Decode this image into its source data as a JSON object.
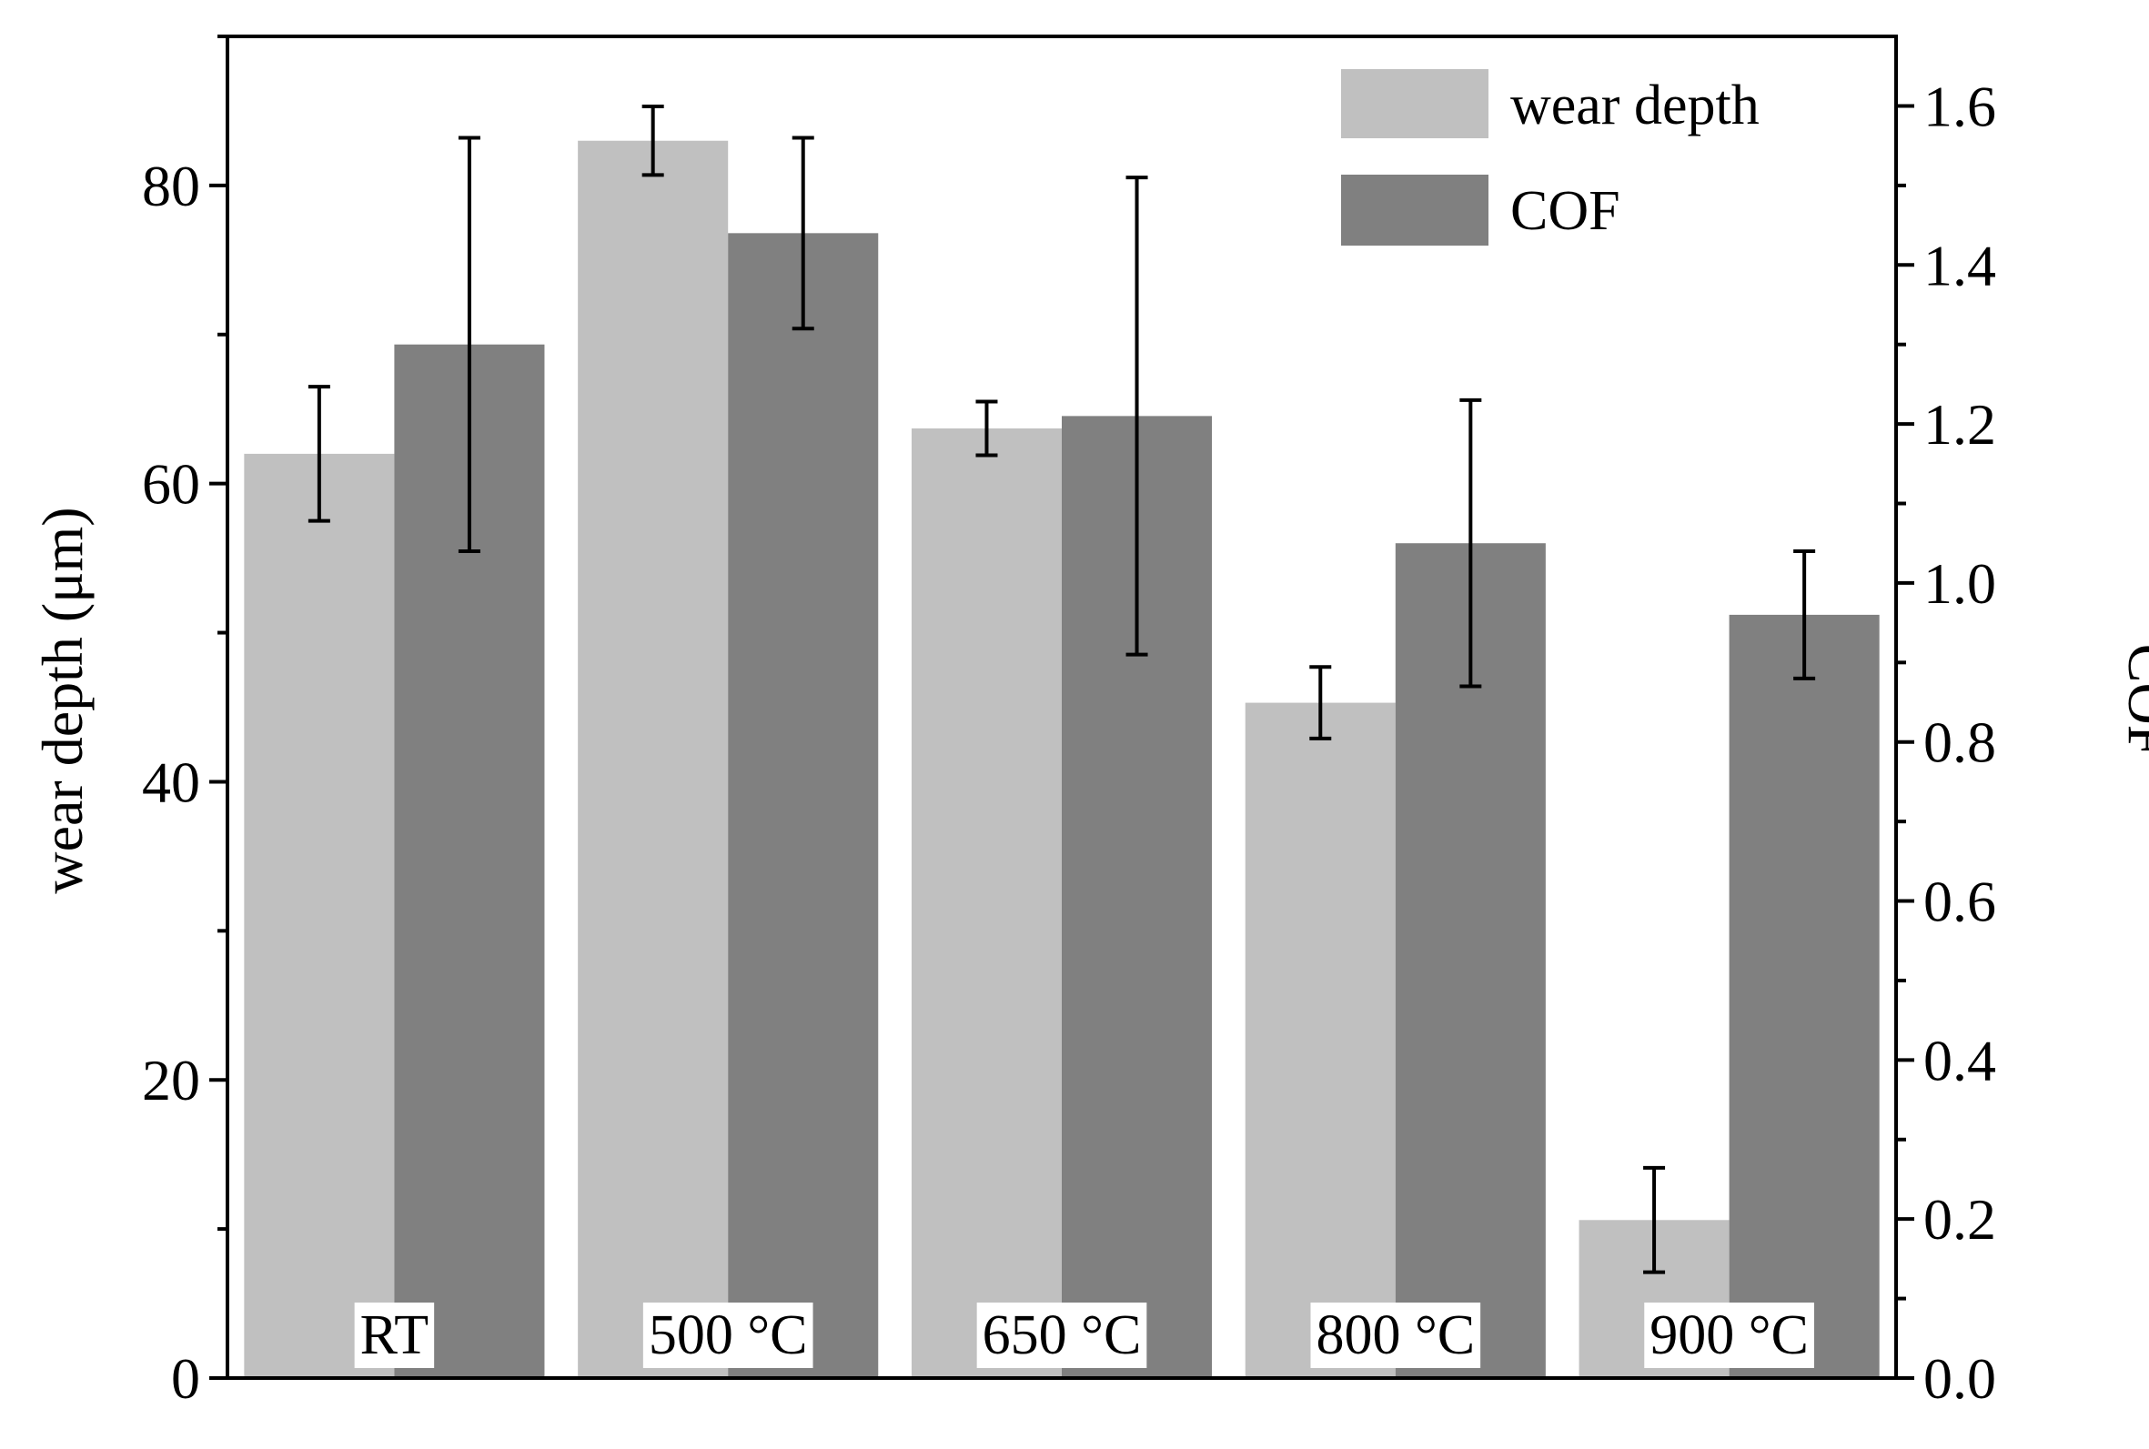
{
  "chart_data": {
    "type": "bar",
    "categories": [
      "RT",
      "500 °C",
      "650 °C",
      "800 °C",
      "900 °C"
    ],
    "series": [
      {
        "name": "wear depth",
        "axis": "left",
        "color": "#c0c0c0",
        "values": [
          62.0,
          83.0,
          63.7,
          45.3,
          10.6
        ],
        "error": [
          4.5,
          2.3,
          1.8,
          2.4,
          3.5
        ]
      },
      {
        "name": "COF",
        "axis": "right",
        "color": "#808080",
        "values": [
          1.3,
          1.44,
          1.21,
          1.05,
          0.96
        ],
        "error": [
          0.26,
          0.12,
          0.3,
          0.18,
          0.08
        ]
      }
    ],
    "ylabel": "wear depth (μm)",
    "y2label": "COF",
    "ylim": [
      0,
      90
    ],
    "y2lim": [
      0,
      1.6875
    ],
    "yticks": [
      0,
      20,
      40,
      60,
      80
    ],
    "ytick_labels": [
      "0",
      "20",
      "40",
      "60",
      "80"
    ],
    "y2ticks": [
      0.0,
      0.2,
      0.4,
      0.6,
      0.8,
      1.0,
      1.2,
      1.4,
      1.6
    ],
    "y2tick_labels": [
      "0.0",
      "0.2",
      "0.4",
      "0.6",
      "0.8",
      "1.0",
      "1.2",
      "1.4",
      "1.6"
    ],
    "legend": {
      "position": "top-right",
      "entries": [
        "wear depth",
        "COF"
      ]
    },
    "grid": false
  }
}
